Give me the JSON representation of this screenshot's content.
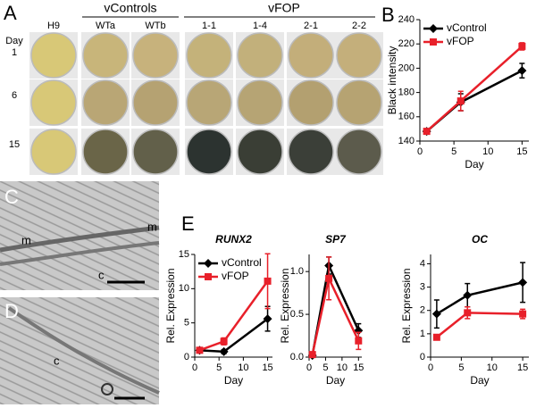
{
  "panel_letters": [
    "A",
    "B",
    "C",
    "D",
    "E"
  ],
  "panel_a": {
    "groups": [
      "vControls",
      "vFOP"
    ],
    "columns": [
      "H9",
      "WTa",
      "WTb",
      "1-1",
      "1-4",
      "2-1",
      "2-2"
    ],
    "row_header": "Day",
    "rows": [
      "1",
      "6",
      "15"
    ]
  },
  "panel_c": {
    "labels": [
      "m",
      "c",
      "m"
    ]
  },
  "panel_d": {
    "labels": [
      "c"
    ]
  },
  "chart_data": [
    {
      "type": "line",
      "xlabel": "Day",
      "ylabel": "Black intensity",
      "x": [
        1,
        6,
        15
      ],
      "xlim": [
        0,
        16
      ],
      "xticks": [
        0,
        5,
        10,
        15
      ],
      "ylim": [
        140,
        240
      ],
      "yticks": [
        140,
        160,
        180,
        200,
        220,
        240
      ],
      "legend": "upper left",
      "series": [
        {
          "name": "vControl",
          "color": "#000000",
          "marker": "diamond",
          "values": [
            148,
            172,
            198
          ],
          "errors": [
            2,
            7,
            6
          ]
        },
        {
          "name": "vFOP",
          "color": "#e8202a",
          "marker": "square",
          "values": [
            148,
            173,
            218
          ],
          "errors": [
            2,
            8,
            3
          ]
        }
      ]
    },
    {
      "type": "line",
      "title": "RUNX2",
      "xlabel": "Day",
      "ylabel": "Rel. Expression",
      "x": [
        1,
        6,
        15
      ],
      "xlim": [
        0,
        16
      ],
      "xticks": [
        0,
        5,
        10,
        15
      ],
      "ylim": [
        0,
        15
      ],
      "yticks": [
        0,
        5,
        10,
        15
      ],
      "legend": "upper left",
      "series": [
        {
          "name": "vControl",
          "color": "#000000",
          "marker": "diamond",
          "values": [
            1,
            0.8,
            5.6
          ],
          "errors": [
            0.3,
            0.3,
            1.8
          ]
        },
        {
          "name": "vFOP",
          "color": "#e8202a",
          "marker": "square",
          "values": [
            1,
            2.3,
            11.1
          ],
          "errors": [
            0.2,
            0.5,
            4
          ]
        }
      ]
    },
    {
      "type": "line",
      "title": "SP7",
      "xlabel": "Day",
      "ylabel": "Rel. Expression",
      "x": [
        1,
        6,
        15
      ],
      "xlim": [
        0,
        16
      ],
      "xticks": [
        0,
        5,
        10,
        15
      ],
      "ylim": [
        0,
        1.2
      ],
      "yticks": [
        {
          "value": 0,
          "label": "0.0"
        },
        {
          "value": 0.5,
          "label": "0.5"
        },
        {
          "value": 1,
          "label": "1.0"
        }
      ],
      "series": [
        {
          "name": "vControl",
          "color": "#000000",
          "marker": "diamond",
          "values": [
            0.02,
            1.07,
            0.31
          ],
          "errors": [
            0.02,
            0.1,
            0.08
          ]
        },
        {
          "name": "vFOP",
          "color": "#e8202a",
          "marker": "square",
          "values": [
            0.03,
            0.92,
            0.19
          ],
          "errors": [
            0.02,
            0.25,
            0.1
          ]
        }
      ]
    },
    {
      "type": "line",
      "title": "OC",
      "xlabel": "Day",
      "ylabel": "Rel. Expression",
      "x": [
        1,
        6,
        15
      ],
      "xlim": [
        0,
        16
      ],
      "xticks": [
        0,
        5,
        10,
        15
      ],
      "ylim": [
        0,
        4.4
      ],
      "yticks": [
        0,
        1,
        2,
        3,
        4
      ],
      "series": [
        {
          "name": "vControl",
          "color": "#000000",
          "marker": "diamond",
          "values": [
            1.85,
            2.65,
            3.2
          ],
          "errors": [
            0.6,
            0.5,
            0.85
          ]
        },
        {
          "name": "vFOP",
          "color": "#e8202a",
          "marker": "square",
          "values": [
            0.85,
            1.9,
            1.85
          ],
          "errors": [
            0.1,
            0.25,
            0.2
          ]
        }
      ]
    }
  ]
}
